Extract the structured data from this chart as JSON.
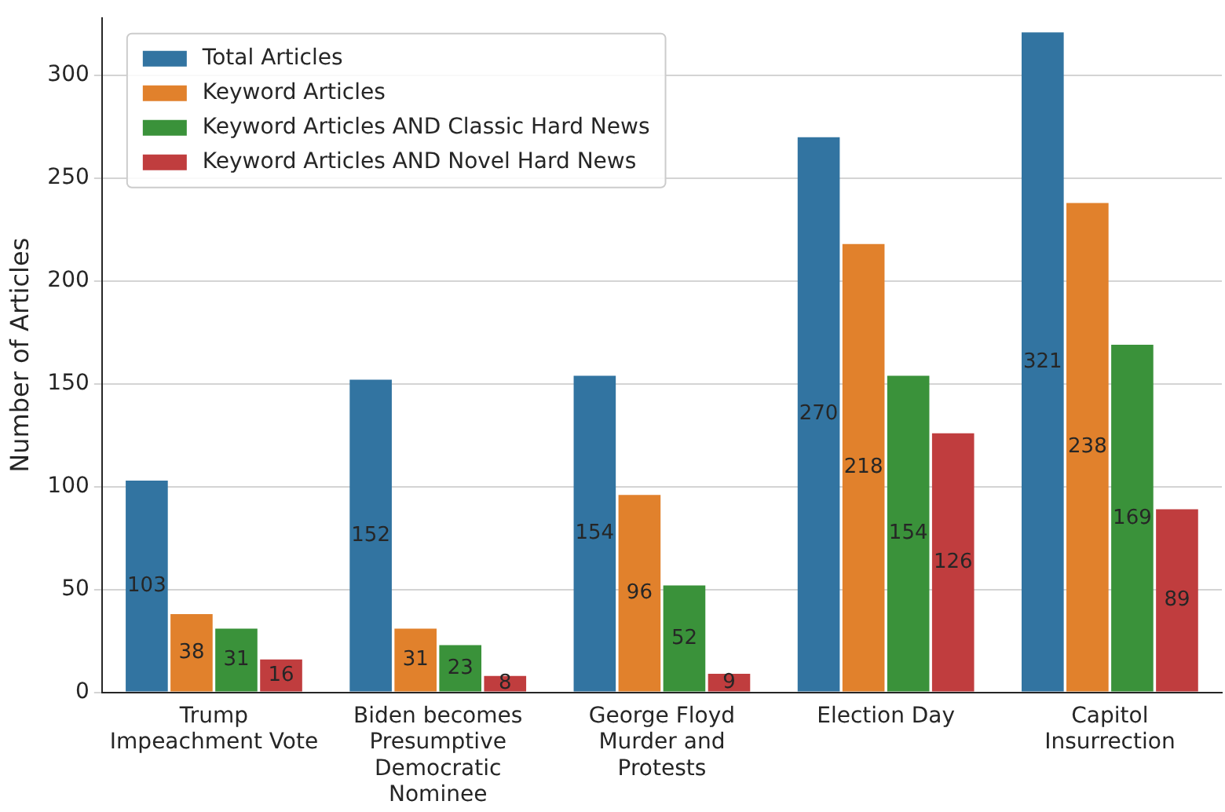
{
  "chart_data": {
    "type": "bar",
    "ylabel": "Number of Articles",
    "categories": [
      "Trump\nImpeachment Vote",
      "Biden becomes\nPresumptive\nDemocratic\nNominee",
      "George Floyd\nMurder and\nProtests",
      "Election Day",
      "Capitol\nInsurrection"
    ],
    "series": [
      {
        "name": "Total Articles",
        "color": "#3274a1",
        "values": [
          103,
          152,
          154,
          270,
          321
        ]
      },
      {
        "name": "Keyword Articles",
        "color": "#e1812c",
        "values": [
          38,
          31,
          96,
          218,
          238
        ]
      },
      {
        "name": "Keyword Articles AND Classic Hard News",
        "color": "#3a923a",
        "values": [
          31,
          23,
          52,
          154,
          169
        ]
      },
      {
        "name": "Keyword Articles AND Novel Hard News",
        "color": "#c03d3e",
        "values": [
          16,
          8,
          9,
          126,
          89
        ]
      }
    ],
    "ylim": [
      0,
      328
    ],
    "yticks": [
      0,
      50,
      100,
      150,
      200,
      250,
      300
    ],
    "grid": "y",
    "legend": "top left",
    "data_labels": true
  }
}
